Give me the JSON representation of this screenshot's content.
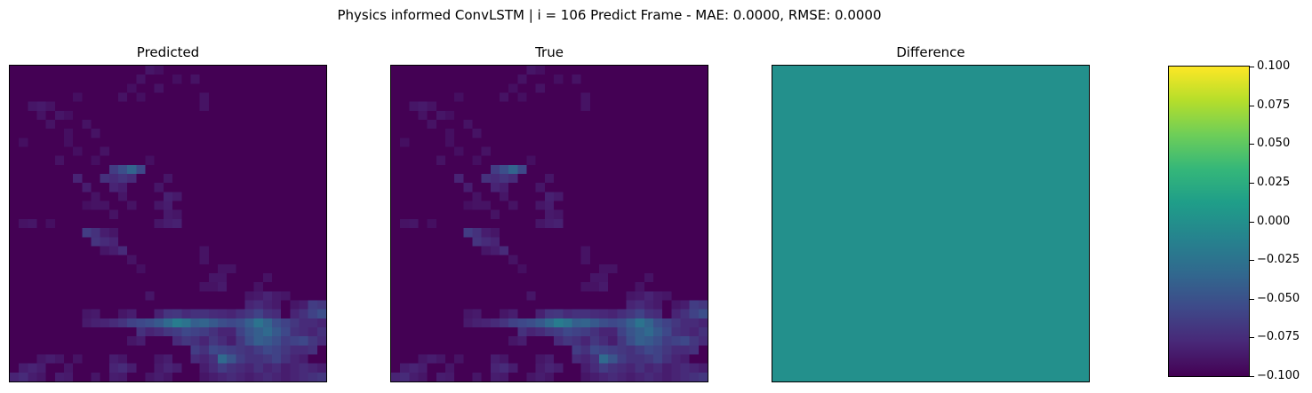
{
  "suptitle": "Physics informed ConvLSTM | i = 106 Predict Frame - MAE: 0.0000, RMSE: 0.0000",
  "chart_data": [
    {
      "type": "heatmap",
      "title": "Predicted",
      "grid_size": [
        35,
        35
      ],
      "colormap": "viridis",
      "background_value": 0.0,
      "cells": [
        [
          0,
          15,
          0.06
        ],
        [
          0,
          16,
          0.04
        ],
        [
          1,
          14,
          0.05
        ],
        [
          1,
          18,
          0.04
        ],
        [
          1,
          20,
          0.05
        ],
        [
          2,
          13,
          0.04
        ],
        [
          2,
          16,
          0.05
        ],
        [
          3,
          7,
          0.04
        ],
        [
          3,
          12,
          0.05
        ],
        [
          3,
          14,
          0.04
        ],
        [
          3,
          21,
          0.05
        ],
        [
          4,
          21,
          0.05
        ],
        [
          4,
          2,
          0.06
        ],
        [
          4,
          3,
          0.07
        ],
        [
          4,
          4,
          0.05
        ],
        [
          5,
          3,
          0.05
        ],
        [
          5,
          5,
          0.06
        ],
        [
          5,
          6,
          0.04
        ],
        [
          6,
          4,
          0.05
        ],
        [
          6,
          8,
          0.05
        ],
        [
          7,
          6,
          0.04
        ],
        [
          7,
          9,
          0.05
        ],
        [
          8,
          1,
          0.04
        ],
        [
          8,
          6,
          0.04
        ],
        [
          9,
          7,
          0.04
        ],
        [
          9,
          10,
          0.05
        ],
        [
          10,
          5,
          0.05
        ],
        [
          10,
          9,
          0.04
        ],
        [
          10,
          15,
          0.04
        ],
        [
          11,
          11,
          0.18
        ],
        [
          11,
          12,
          0.24
        ],
        [
          11,
          13,
          0.32
        ],
        [
          11,
          14,
          0.22
        ],
        [
          12,
          7,
          0.1
        ],
        [
          12,
          10,
          0.14
        ],
        [
          12,
          11,
          0.12
        ],
        [
          12,
          12,
          0.15
        ],
        [
          12,
          13,
          0.12
        ],
        [
          12,
          17,
          0.06
        ],
        [
          13,
          8,
          0.08
        ],
        [
          13,
          11,
          0.1
        ],
        [
          13,
          12,
          0.08
        ],
        [
          13,
          16,
          0.06
        ],
        [
          14,
          9,
          0.05
        ],
        [
          14,
          12,
          0.06
        ],
        [
          14,
          17,
          0.09
        ],
        [
          14,
          18,
          0.07
        ],
        [
          15,
          8,
          0.04
        ],
        [
          15,
          9,
          0.05
        ],
        [
          15,
          10,
          0.05
        ],
        [
          15,
          13,
          0.05
        ],
        [
          15,
          16,
          0.06
        ],
        [
          15,
          17,
          0.08
        ],
        [
          16,
          11,
          0.05
        ],
        [
          16,
          17,
          0.07
        ],
        [
          16,
          18,
          0.06
        ],
        [
          17,
          1,
          0.05
        ],
        [
          17,
          2,
          0.06
        ],
        [
          17,
          4,
          0.04
        ],
        [
          17,
          16,
          0.06
        ],
        [
          17,
          17,
          0.08
        ],
        [
          17,
          18,
          0.09
        ],
        [
          18,
          8,
          0.18
        ],
        [
          18,
          9,
          0.14
        ],
        [
          18,
          10,
          0.08
        ],
        [
          18,
          11,
          0.06
        ],
        [
          19,
          9,
          0.15
        ],
        [
          19,
          10,
          0.12
        ],
        [
          19,
          11,
          0.1
        ],
        [
          20,
          10,
          0.06
        ],
        [
          20,
          11,
          0.08
        ],
        [
          20,
          12,
          0.12
        ],
        [
          20,
          21,
          0.05
        ],
        [
          21,
          13,
          0.05
        ],
        [
          21,
          21,
          0.05
        ],
        [
          22,
          14,
          0.04
        ],
        [
          22,
          23,
          0.05
        ],
        [
          22,
          24,
          0.05
        ],
        [
          23,
          22,
          0.06
        ],
        [
          23,
          23,
          0.06
        ],
        [
          23,
          28,
          0.05
        ],
        [
          24,
          21,
          0.05
        ],
        [
          24,
          22,
          0.05
        ],
        [
          24,
          23,
          0.07
        ],
        [
          24,
          27,
          0.05
        ],
        [
          25,
          15,
          0.06
        ],
        [
          25,
          26,
          0.06
        ],
        [
          25,
          27,
          0.07
        ],
        [
          25,
          28,
          0.1
        ],
        [
          25,
          29,
          0.07
        ],
        [
          25,
          30,
          0.06
        ],
        [
          26,
          26,
          0.1
        ],
        [
          26,
          27,
          0.12
        ],
        [
          26,
          28,
          0.09
        ],
        [
          26,
          29,
          0.07
        ],
        [
          26,
          31,
          0.06
        ],
        [
          26,
          32,
          0.08
        ],
        [
          26,
          33,
          0.18
        ],
        [
          26,
          34,
          0.16
        ],
        [
          27,
          8,
          0.06
        ],
        [
          27,
          9,
          0.07
        ],
        [
          27,
          12,
          0.06
        ],
        [
          27,
          13,
          0.08
        ],
        [
          27,
          16,
          0.09
        ],
        [
          27,
          17,
          0.15
        ],
        [
          27,
          18,
          0.16
        ],
        [
          27,
          19,
          0.12
        ],
        [
          27,
          20,
          0.14
        ],
        [
          27,
          21,
          0.14
        ],
        [
          27,
          22,
          0.12
        ],
        [
          27,
          23,
          0.11
        ],
        [
          27,
          24,
          0.1
        ],
        [
          27,
          25,
          0.13
        ],
        [
          27,
          26,
          0.16
        ],
        [
          27,
          27,
          0.2
        ],
        [
          27,
          28,
          0.14
        ],
        [
          27,
          29,
          0.12
        ],
        [
          27,
          31,
          0.1
        ],
        [
          27,
          32,
          0.14
        ],
        [
          27,
          33,
          0.2
        ],
        [
          27,
          34,
          0.24
        ],
        [
          28,
          8,
          0.07
        ],
        [
          28,
          9,
          0.09
        ],
        [
          28,
          10,
          0.1
        ],
        [
          28,
          11,
          0.12
        ],
        [
          28,
          12,
          0.15
        ],
        [
          28,
          13,
          0.2
        ],
        [
          28,
          14,
          0.22
        ],
        [
          28,
          15,
          0.24
        ],
        [
          28,
          16,
          0.28
        ],
        [
          28,
          17,
          0.34
        ],
        [
          28,
          18,
          0.42
        ],
        [
          28,
          19,
          0.38
        ],
        [
          28,
          20,
          0.3
        ],
        [
          28,
          21,
          0.32
        ],
        [
          28,
          22,
          0.28
        ],
        [
          28,
          23,
          0.24
        ],
        [
          28,
          24,
          0.22
        ],
        [
          28,
          25,
          0.24
        ],
        [
          28,
          26,
          0.3
        ],
        [
          28,
          27,
          0.38
        ],
        [
          28,
          28,
          0.32
        ],
        [
          28,
          29,
          0.24
        ],
        [
          28,
          30,
          0.2
        ],
        [
          28,
          31,
          0.16
        ],
        [
          28,
          32,
          0.12
        ],
        [
          28,
          33,
          0.12
        ],
        [
          28,
          34,
          0.1
        ],
        [
          29,
          14,
          0.14
        ],
        [
          29,
          15,
          0.1
        ],
        [
          29,
          16,
          0.12
        ],
        [
          29,
          17,
          0.16
        ],
        [
          29,
          18,
          0.18
        ],
        [
          29,
          19,
          0.22
        ],
        [
          29,
          20,
          0.2
        ],
        [
          29,
          21,
          0.18
        ],
        [
          29,
          22,
          0.14
        ],
        [
          29,
          23,
          0.1
        ],
        [
          29,
          24,
          0.1
        ],
        [
          29,
          25,
          0.2
        ],
        [
          29,
          26,
          0.26
        ],
        [
          29,
          27,
          0.3
        ],
        [
          29,
          28,
          0.34
        ],
        [
          29,
          29,
          0.28
        ],
        [
          29,
          30,
          0.22
        ],
        [
          29,
          31,
          0.14
        ],
        [
          29,
          32,
          0.12
        ],
        [
          29,
          33,
          0.1
        ],
        [
          29,
          34,
          0.14
        ],
        [
          30,
          13,
          0.06
        ],
        [
          30,
          14,
          0.08
        ],
        [
          30,
          18,
          0.12
        ],
        [
          30,
          19,
          0.16
        ],
        [
          30,
          20,
          0.14
        ],
        [
          30,
          21,
          0.1
        ],
        [
          30,
          22,
          0.16
        ],
        [
          30,
          23,
          0.12
        ],
        [
          30,
          24,
          0.08
        ],
        [
          30,
          25,
          0.16
        ],
        [
          30,
          26,
          0.24
        ],
        [
          30,
          27,
          0.3
        ],
        [
          30,
          28,
          0.28
        ],
        [
          30,
          29,
          0.24
        ],
        [
          30,
          30,
          0.18
        ],
        [
          30,
          31,
          0.2
        ],
        [
          30,
          32,
          0.22
        ],
        [
          30,
          33,
          0.16
        ],
        [
          30,
          34,
          0.12
        ],
        [
          31,
          20,
          0.18
        ],
        [
          31,
          21,
          0.14
        ],
        [
          31,
          22,
          0.22
        ],
        [
          31,
          23,
          0.2
        ],
        [
          31,
          24,
          0.18
        ],
        [
          31,
          25,
          0.16
        ],
        [
          31,
          26,
          0.14
        ],
        [
          31,
          27,
          0.18
        ],
        [
          31,
          28,
          0.22
        ],
        [
          31,
          29,
          0.2
        ],
        [
          31,
          30,
          0.16
        ],
        [
          31,
          31,
          0.12
        ],
        [
          31,
          32,
          0.12
        ],
        [
          31,
          33,
          0.14
        ],
        [
          32,
          3,
          0.06
        ],
        [
          32,
          4,
          0.08
        ],
        [
          32,
          5,
          0.06
        ],
        [
          32,
          7,
          0.05
        ],
        [
          32,
          11,
          0.08
        ],
        [
          32,
          12,
          0.06
        ],
        [
          32,
          16,
          0.06
        ],
        [
          32,
          17,
          0.08
        ],
        [
          32,
          20,
          0.12
        ],
        [
          32,
          21,
          0.1
        ],
        [
          32,
          22,
          0.14
        ],
        [
          32,
          23,
          0.34
        ],
        [
          32,
          24,
          0.26
        ],
        [
          32,
          25,
          0.18
        ],
        [
          32,
          26,
          0.14
        ],
        [
          32,
          27,
          0.14
        ],
        [
          32,
          28,
          0.16
        ],
        [
          32,
          29,
          0.2
        ],
        [
          32,
          30,
          0.14
        ],
        [
          32,
          31,
          0.1
        ],
        [
          32,
          32,
          0.08
        ],
        [
          33,
          1,
          0.08
        ],
        [
          33,
          2,
          0.1
        ],
        [
          33,
          3,
          0.08
        ],
        [
          33,
          6,
          0.06
        ],
        [
          33,
          11,
          0.1
        ],
        [
          33,
          12,
          0.12
        ],
        [
          33,
          13,
          0.08
        ],
        [
          33,
          16,
          0.07
        ],
        [
          33,
          17,
          0.1
        ],
        [
          33,
          18,
          0.08
        ],
        [
          33,
          21,
          0.08
        ],
        [
          33,
          22,
          0.12
        ],
        [
          33,
          23,
          0.18
        ],
        [
          33,
          24,
          0.14
        ],
        [
          33,
          25,
          0.12
        ],
        [
          33,
          26,
          0.1
        ],
        [
          33,
          27,
          0.14
        ],
        [
          33,
          28,
          0.1
        ],
        [
          33,
          29,
          0.12
        ],
        [
          33,
          30,
          0.08
        ],
        [
          33,
          31,
          0.1
        ],
        [
          33,
          32,
          0.12
        ],
        [
          33,
          33,
          0.1
        ],
        [
          33,
          34,
          0.08
        ],
        [
          34,
          0,
          0.1
        ],
        [
          34,
          1,
          0.12
        ],
        [
          34,
          2,
          0.08
        ],
        [
          34,
          3,
          0.06
        ],
        [
          34,
          5,
          0.08
        ],
        [
          34,
          6,
          0.07
        ],
        [
          34,
          9,
          0.06
        ],
        [
          34,
          11,
          0.08
        ],
        [
          34,
          12,
          0.07
        ],
        [
          34,
          15,
          0.06
        ],
        [
          34,
          16,
          0.08
        ],
        [
          34,
          17,
          0.06
        ],
        [
          34,
          21,
          0.06
        ],
        [
          34,
          22,
          0.08
        ],
        [
          34,
          23,
          0.1
        ],
        [
          34,
          24,
          0.12
        ],
        [
          34,
          25,
          0.1
        ],
        [
          34,
          26,
          0.08
        ],
        [
          34,
          27,
          0.1
        ],
        [
          34,
          28,
          0.12
        ],
        [
          34,
          29,
          0.1
        ],
        [
          34,
          30,
          0.08
        ],
        [
          34,
          31,
          0.1
        ],
        [
          34,
          32,
          0.12
        ],
        [
          34,
          33,
          0.14
        ],
        [
          34,
          34,
          0.16
        ]
      ]
    },
    {
      "type": "heatmap",
      "title": "True",
      "grid_size": [
        35,
        35
      ],
      "colormap": "viridis",
      "same_as": "Predicted"
    },
    {
      "type": "heatmap",
      "title": "Difference",
      "grid_size": [
        35,
        35
      ],
      "colormap": "viridis",
      "uniform_value": 0.0,
      "vmin": -0.1,
      "vmax": 0.1
    }
  ],
  "colorbar": {
    "colormap": "viridis",
    "vmin": -0.1,
    "vmax": 0.1,
    "ticks": [
      0.1,
      0.075,
      0.05,
      0.025,
      0.0,
      -0.025,
      -0.05,
      -0.075,
      -0.1
    ],
    "tick_labels": [
      "0.100",
      "0.075",
      "0.050",
      "0.025",
      "0.000",
      "−0.025",
      "−0.050",
      "−0.075",
      "−0.100"
    ]
  }
}
